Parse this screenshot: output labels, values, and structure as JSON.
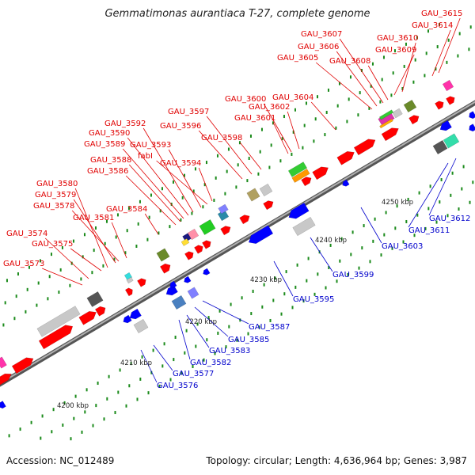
{
  "title": "Gemmatimonas aurantiaca T-27, complete genome",
  "footer": {
    "accession": "Accession: NC_012489",
    "summary": "Topology: circular; Length: 4,636,964 bp; Genes: 3,987"
  },
  "colors": {
    "forward_label": "#e00000",
    "reverse_label": "#0000cc",
    "backbone": "#808080",
    "tick": "#1a8a1a",
    "forward_gene": "#ff0000",
    "reverse_gene": "#0000ff"
  },
  "ticks": [
    {
      "label": "4200 kbp"
    },
    {
      "label": "4210 kbp"
    },
    {
      "label": "4220 kbp"
    },
    {
      "label": "4230 kbp"
    },
    {
      "label": "4240 kbp"
    },
    {
      "label": "4250 kbp"
    }
  ],
  "forward_labels": [
    {
      "text": "GAU_3573"
    },
    {
      "text": "GAU_3574"
    },
    {
      "text": "GAU_3575"
    },
    {
      "text": "GAU_3578"
    },
    {
      "text": "GAU_3579"
    },
    {
      "text": "GAU_3580"
    },
    {
      "text": "GAU_3581"
    },
    {
      "text": "GAU_3584"
    },
    {
      "text": "GAU_3586"
    },
    {
      "text": "GAU_3588"
    },
    {
      "text": "GAU_3589"
    },
    {
      "text": "GAU_3590"
    },
    {
      "text": "GAU_3592"
    },
    {
      "text": "GAU_3593"
    },
    {
      "text": "fabI"
    },
    {
      "text": "GAU_3594"
    },
    {
      "text": "GAU_3596"
    },
    {
      "text": "GAU_3597"
    },
    {
      "text": "GAU_3598"
    },
    {
      "text": "GAU_3600"
    },
    {
      "text": "GAU_3601"
    },
    {
      "text": "GAU_3602"
    },
    {
      "text": "GAU_3604"
    },
    {
      "text": "GAU_3605"
    },
    {
      "text": "GAU_3606"
    },
    {
      "text": "GAU_3607"
    },
    {
      "text": "GAU_3608"
    },
    {
      "text": "GAU_3609"
    },
    {
      "text": "GAU_3610"
    },
    {
      "text": "GAU_3614"
    },
    {
      "text": "GAU_3615"
    }
  ],
  "reverse_labels": [
    {
      "text": "GAU_3576"
    },
    {
      "text": "GAU_3577"
    },
    {
      "text": "GAU_3582"
    },
    {
      "text": "GAU_3583"
    },
    {
      "text": "GAU_3585"
    },
    {
      "text": "GAU_3587"
    },
    {
      "text": "GAU_3595"
    },
    {
      "text": "GAU_3599"
    },
    {
      "text": "GAU_3603"
    },
    {
      "text": "GAU_3611"
    },
    {
      "text": "GAU_3612"
    }
  ]
}
